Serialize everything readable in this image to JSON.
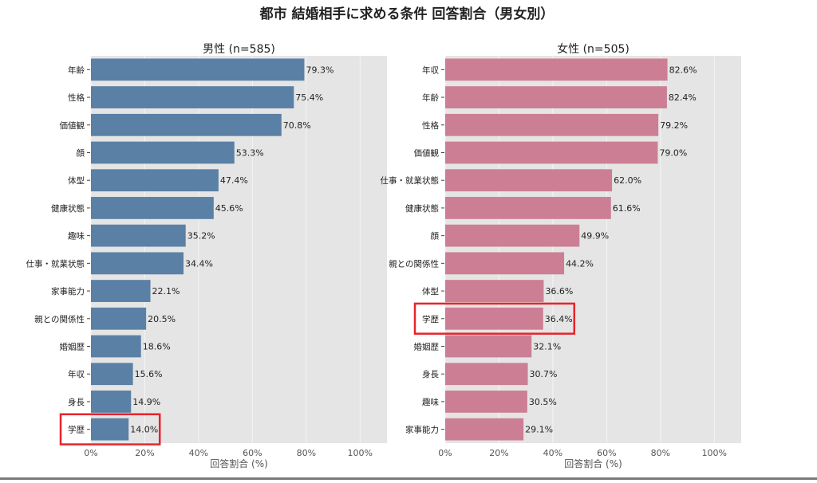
{
  "title": "都市 結婚相手に求める条件 回答割合（男女別）",
  "colors": {
    "male_bar": "#5b80a5",
    "female_bar": "#cc7f94",
    "plot_bg": "#e5e5e5",
    "grid": "#f4f4f4",
    "highlight": "#e8232b",
    "text": "#222222",
    "tick_text": "#555555"
  },
  "chart_data": [
    {
      "type": "bar",
      "orientation": "horizontal",
      "title": "男性 (n=585)",
      "xlabel": "回答割合 (%)",
      "xlim": [
        0,
        110
      ],
      "xticks": [
        0,
        20,
        40,
        60,
        80,
        100
      ],
      "xtick_labels": [
        "0%",
        "20%",
        "40%",
        "60%",
        "80%",
        "100%"
      ],
      "grid": true,
      "categories": [
        "年齢",
        "性格",
        "価値観",
        "顔",
        "体型",
        "健康状態",
        "趣味",
        "仕事・就業状態",
        "家事能力",
        "親との関係性",
        "婚姻歴",
        "年収",
        "身長",
        "学歴"
      ],
      "values": [
        79.3,
        75.4,
        70.8,
        53.3,
        47.4,
        45.6,
        35.2,
        34.4,
        22.1,
        20.5,
        18.6,
        15.6,
        14.9,
        14.0
      ],
      "value_labels": [
        "79.3%",
        "75.4%",
        "70.8%",
        "53.3%",
        "47.4%",
        "45.6%",
        "35.2%",
        "34.4%",
        "22.1%",
        "20.5%",
        "18.6%",
        "15.6%",
        "14.9%",
        "14.0%"
      ],
      "highlight_category": "学歴"
    },
    {
      "type": "bar",
      "orientation": "horizontal",
      "title": "女性 (n=505)",
      "xlabel": "回答割合 (%)",
      "xlim": [
        0,
        110
      ],
      "xticks": [
        0,
        20,
        40,
        60,
        80,
        100
      ],
      "xtick_labels": [
        "0%",
        "20%",
        "40%",
        "60%",
        "80%",
        "100%"
      ],
      "grid": true,
      "categories": [
        "年収",
        "年齢",
        "性格",
        "価値観",
        "仕事・就業状態",
        "健康状態",
        "顔",
        "親との関係性",
        "体型",
        "学歴",
        "婚姻歴",
        "身長",
        "趣味",
        "家事能力"
      ],
      "values": [
        82.6,
        82.4,
        79.2,
        79.0,
        62.0,
        61.6,
        49.9,
        44.2,
        36.6,
        36.4,
        32.1,
        30.7,
        30.5,
        29.1
      ],
      "value_labels": [
        "82.6%",
        "82.4%",
        "79.2%",
        "79.0%",
        "62.0%",
        "61.6%",
        "49.9%",
        "44.2%",
        "36.6%",
        "36.4%",
        "32.1%",
        "30.7%",
        "30.5%",
        "29.1%"
      ],
      "highlight_category": "学歴"
    }
  ]
}
